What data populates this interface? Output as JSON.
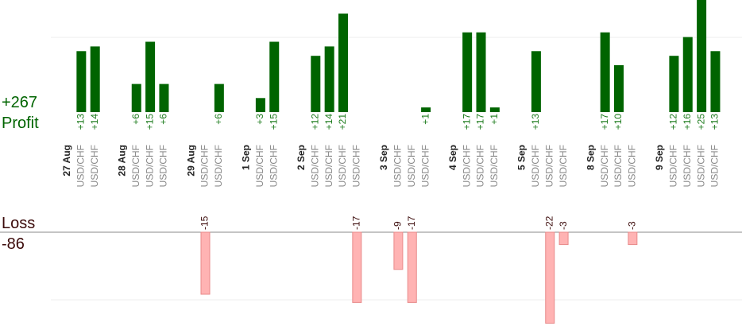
{
  "summary": {
    "profit_total": "+267",
    "profit_label": "Profit",
    "loss_label": "Loss",
    "loss_total": "-86"
  },
  "colors": {
    "profit_bar": "#006400",
    "profit_text": "#1a7a1a",
    "loss_bar": "#ffb3b3",
    "loss_bar_stroke": "#e88a8a",
    "loss_text": "#3b0a0a",
    "date_text": "#222222",
    "pair_text": "#888888",
    "gridline": "#eeeeee",
    "baseline": "#888888"
  },
  "chart_data": {
    "type": "bar",
    "profit_ylim": [
      0,
      25
    ],
    "loss_ylim": [
      -22,
      0
    ],
    "grid": true,
    "columns": [
      {
        "date": "27 Aug",
        "pair": ""
      },
      {
        "date": "",
        "pair": "USD/CHF",
        "profit": 13
      },
      {
        "date": "",
        "pair": "USD/CHF",
        "profit": 14
      },
      {
        "date": "",
        "pair": ""
      },
      {
        "date": "28 Aug",
        "pair": ""
      },
      {
        "date": "",
        "pair": "USD/CHF",
        "profit": 6
      },
      {
        "date": "",
        "pair": "USD/CHF",
        "profit": 15
      },
      {
        "date": "",
        "pair": "USD/CHF",
        "profit": 6
      },
      {
        "date": "",
        "pair": ""
      },
      {
        "date": "29 Aug",
        "pair": ""
      },
      {
        "date": "",
        "pair": "USD/CHF",
        "loss": -15
      },
      {
        "date": "",
        "pair": "USD/CHF",
        "profit": 6
      },
      {
        "date": "",
        "pair": ""
      },
      {
        "date": "1 Sep",
        "pair": ""
      },
      {
        "date": "",
        "pair": "USD/CHF",
        "profit": 3
      },
      {
        "date": "",
        "pair": "USD/CHF",
        "profit": 15
      },
      {
        "date": "",
        "pair": ""
      },
      {
        "date": "2 Sep",
        "pair": ""
      },
      {
        "date": "",
        "pair": "USD/CHF",
        "profit": 12
      },
      {
        "date": "",
        "pair": "USD/CHF",
        "profit": 14
      },
      {
        "date": "",
        "pair": "USD/CHF",
        "profit": 21
      },
      {
        "date": "",
        "pair": "USD/CHF",
        "loss": -17
      },
      {
        "date": "",
        "pair": ""
      },
      {
        "date": "3 Sep",
        "pair": ""
      },
      {
        "date": "",
        "pair": "USD/CHF",
        "loss": -9
      },
      {
        "date": "",
        "pair": "USD/CHF",
        "loss": -17
      },
      {
        "date": "",
        "pair": "USD/CHF",
        "profit": 1
      },
      {
        "date": "",
        "pair": ""
      },
      {
        "date": "4 Sep",
        "pair": ""
      },
      {
        "date": "",
        "pair": "USD/CHF",
        "profit": 17
      },
      {
        "date": "",
        "pair": "USD/CHF",
        "profit": 17
      },
      {
        "date": "",
        "pair": "USD/CHF",
        "profit": 1
      },
      {
        "date": "",
        "pair": ""
      },
      {
        "date": "5 Sep",
        "pair": ""
      },
      {
        "date": "",
        "pair": "USD/CHF",
        "profit": 13
      },
      {
        "date": "",
        "pair": "USD/CHF",
        "loss": -22
      },
      {
        "date": "",
        "pair": "USD/CHF",
        "loss": -3
      },
      {
        "date": "",
        "pair": ""
      },
      {
        "date": "8 Sep",
        "pair": ""
      },
      {
        "date": "",
        "pair": "USD/CHF",
        "profit": 17
      },
      {
        "date": "",
        "pair": "USD/CHF",
        "profit": 10
      },
      {
        "date": "",
        "pair": "USD/CHF",
        "loss": -3
      },
      {
        "date": "",
        "pair": ""
      },
      {
        "date": "9 Sep",
        "pair": ""
      },
      {
        "date": "",
        "pair": "USD/CHF",
        "profit": 12
      },
      {
        "date": "",
        "pair": "USD/CHF",
        "profit": 16
      },
      {
        "date": "",
        "pair": "USD/CHF",
        "profit": 25
      },
      {
        "date": "",
        "pair": "USD/CHF",
        "profit": 13
      }
    ]
  }
}
